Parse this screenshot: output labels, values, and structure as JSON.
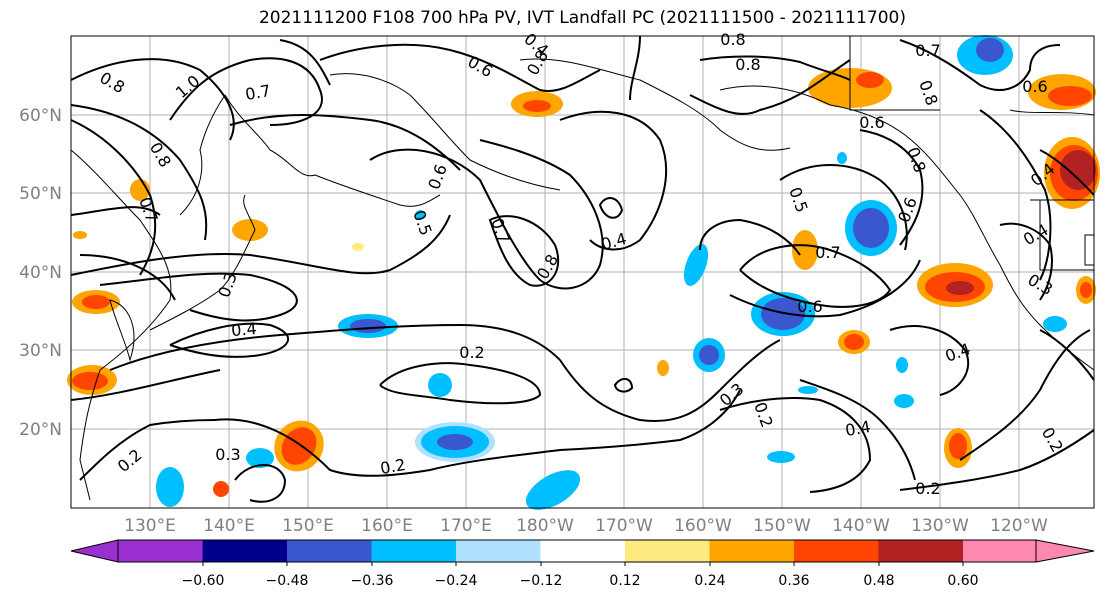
{
  "title": "2021111200 F108 700 hPa PV, IVT Landfall PC (2021111500 - 2021111700)",
  "map": {
    "lon_ticks": [
      "130°E",
      "140°E",
      "150°E",
      "160°E",
      "170°E",
      "180°W",
      "170°W",
      "160°W",
      "150°W",
      "140°W",
      "130°W",
      "120°W"
    ],
    "lat_ticks": [
      "60°N",
      "50°N",
      "40°N",
      "30°N",
      "20°N"
    ]
  },
  "contours": [
    {
      "label": "0.8",
      "value": 0.8
    },
    {
      "label": "1.0",
      "value": 1.0
    },
    {
      "label": "0.7",
      "value": 0.7
    },
    {
      "label": "0.6",
      "value": 0.6
    },
    {
      "label": "0.4",
      "value": 0.4
    },
    {
      "label": "0.5",
      "value": 0.5
    },
    {
      "label": "0.3",
      "value": 0.3
    },
    {
      "label": "0.2",
      "value": 0.2
    }
  ],
  "colorbar": {
    "tick_labels": [
      "−0.60",
      "−0.48",
      "−0.36",
      "−0.24",
      "−0.12",
      "0.12",
      "0.24",
      "0.36",
      "0.48",
      "0.60"
    ],
    "colors": [
      "#9b30d0",
      "#00008b",
      "#3a57d0",
      "#00bfff",
      "#b0e2ff",
      "#ffffff",
      "#ffea80",
      "#ffa500",
      "#ff4500",
      "#b22222",
      "#ff88b0"
    ]
  }
}
